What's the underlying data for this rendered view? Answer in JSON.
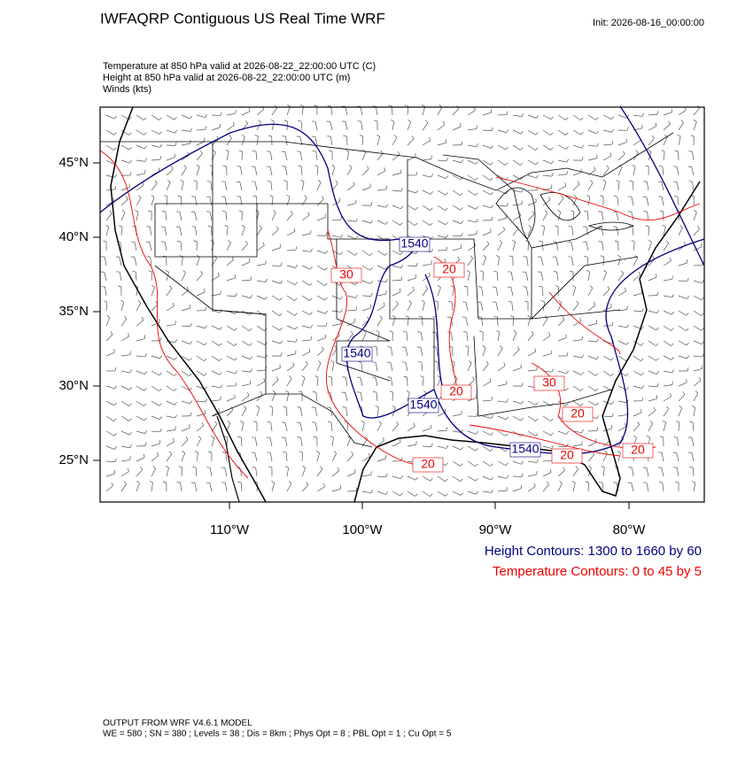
{
  "header": {
    "title": "IWFAQRP Contiguous US Real Time WRF",
    "init": "Init: 2026-08-16_00:00:00"
  },
  "fields": [
    "Temperature at 850 hPa valid at 2026-08-22_22:00:00 UTC   (C)",
    "Height at 850 hPa valid at 2026-08-22_22:00:00 UTC   (m)",
    "Winds   (kts)"
  ],
  "map": {
    "lat_labels": [
      "45°N",
      "40°N",
      "35°N",
      "30°N",
      "25°N"
    ],
    "lon_labels": [
      "110°W",
      "100°W",
      "90°W",
      "80°W"
    ],
    "height_contour_labels": [
      "1540",
      "1540",
      "1540",
      "1540"
    ],
    "temperature_contour_labels": [
      "30",
      "20",
      "20",
      "30",
      "20",
      "20",
      "20",
      "20"
    ]
  },
  "legend": [
    "Height Contours: 1300 to 1660 by 60",
    "Temperature Contours: 0 to 45 by 5"
  ],
  "footer": [
    "OUTPUT FROM WRF V4.6.1 MODEL",
    "WE = 580 ; SN = 380 ; Levels = 38 ; Dis = 8km ; Phys Opt = 8 ; PBL Opt = 1 ; Cu Opt = 5"
  ]
}
